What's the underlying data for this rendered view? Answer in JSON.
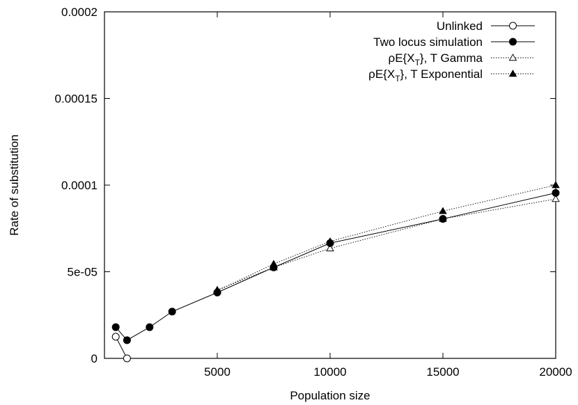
{
  "chart_data": {
    "type": "line",
    "xlabel": "Population size",
    "ylabel": "Rate of substitution",
    "xlim": [
      0,
      20000
    ],
    "ylim": [
      0,
      0.0002
    ],
    "x_ticks": [
      {
        "value": 5000,
        "label": "5000"
      },
      {
        "value": 10000,
        "label": "10000"
      },
      {
        "value": 15000,
        "label": "15000"
      },
      {
        "value": 20000,
        "label": "20000"
      }
    ],
    "y_ticks": [
      {
        "value": 0,
        "label": "0"
      },
      {
        "value": 5e-05,
        "label": "5e-05"
      },
      {
        "value": 0.0001,
        "label": "0.0001"
      },
      {
        "value": 0.00015,
        "label": "0.00015"
      },
      {
        "value": 0.0002,
        "label": "0.0002"
      }
    ],
    "grid": false,
    "legend_position": "top-right",
    "series": [
      {
        "name": "Unlinked",
        "line": "solid",
        "marker": "circle-open",
        "points": [
          [
            500,
            1.25e-05
          ],
          [
            1000,
            0.0
          ]
        ]
      },
      {
        "name": "Two locus simulation",
        "line": "solid",
        "marker": "circle-filled",
        "points": [
          [
            500,
            1.8e-05
          ],
          [
            1000,
            1.05e-05
          ],
          [
            2000,
            1.8e-05
          ],
          [
            3000,
            2.7e-05
          ],
          [
            5000,
            3.8e-05
          ],
          [
            7500,
            5.25e-05
          ],
          [
            10000,
            6.65e-05
          ],
          [
            15000,
            8.05e-05
          ],
          [
            20000,
            9.55e-05
          ]
        ]
      },
      {
        "name": "ρE{X_T}, T Gamma",
        "line": "dotted",
        "marker": "triangle-open",
        "points": [
          [
            5000,
            3.95e-05
          ],
          [
            7500,
            5.25e-05
          ],
          [
            10000,
            6.35e-05
          ],
          [
            15000,
            8.05e-05
          ],
          [
            20000,
            9.2e-05
          ]
        ]
      },
      {
        "name": "ρE{X_T}, T Exponential",
        "line": "dotted",
        "marker": "triangle-filled",
        "points": [
          [
            5000,
            3.9e-05
          ],
          [
            7500,
            5.45e-05
          ],
          [
            10000,
            6.75e-05
          ],
          [
            15000,
            8.5e-05
          ],
          [
            20000,
            0.0001
          ]
        ]
      }
    ]
  },
  "legend_text": {
    "unlinked": "Unlinked",
    "two_locus": "Two locus simulation",
    "gamma": {
      "prefix": "ρE{X",
      "sub": "T",
      "suffix": "}, T Gamma"
    },
    "exponential": {
      "prefix": "ρE{X",
      "sub": "T",
      "suffix": "}, T Exponential"
    }
  }
}
